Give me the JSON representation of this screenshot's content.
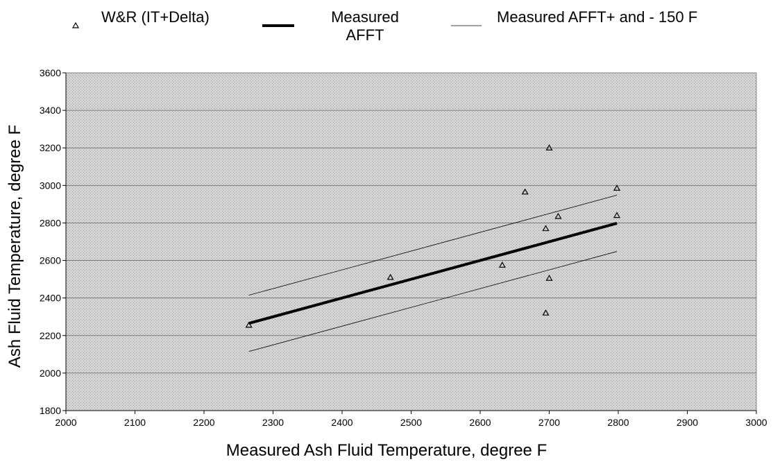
{
  "chart_data": {
    "type": "scatter",
    "title": "",
    "xlabel": "Measured Ash Fluid Temperature, degree F",
    "ylabel": "Ash Fluid Temperature, degree F",
    "xlim": [
      2000,
      3000
    ],
    "ylim": [
      1800,
      3600
    ],
    "xticks": [
      "2000",
      "2100",
      "2200",
      "2300",
      "2400",
      "2500",
      "2600",
      "2700",
      "2800",
      "2900",
      "3000"
    ],
    "yticks": [
      "1800",
      "2000",
      "2200",
      "2400",
      "2600",
      "2800",
      "3000",
      "3200",
      "3400",
      "3600"
    ],
    "grid": "horizontal",
    "legend_position": "top",
    "series": [
      {
        "name": "W&R (IT+Delta)",
        "kind": "scatter",
        "marker": "open-triangle",
        "x": [
          2265,
          2470,
          2632,
          2665,
          2695,
          2695,
          2700,
          2700,
          2713,
          2798,
          2798
        ],
        "y": [
          2255,
          2510,
          2575,
          2965,
          2770,
          2320,
          3200,
          2505,
          2835,
          2985,
          2840
        ]
      },
      {
        "name": "Measured AFFT",
        "kind": "line",
        "line_weight": "heavy",
        "x": [
          2265,
          2798
        ],
        "y": [
          2265,
          2798
        ]
      },
      {
        "name": "Measured AFFT+ and - 150 F",
        "kind": "line",
        "line_weight": "thin",
        "lines": [
          {
            "x": [
              2265,
              2798
            ],
            "y": [
              2415,
              2948
            ]
          },
          {
            "x": [
              2265,
              2798
            ],
            "y": [
              2115,
              2648
            ]
          }
        ]
      }
    ],
    "legend": [
      {
        "label": "W&R (IT+Delta)",
        "label_lines": [
          "W&R (IT+Delta)"
        ]
      },
      {
        "label": "Measured AFFT",
        "label_lines": [
          "Measured",
          "AFFT"
        ]
      },
      {
        "label": "Measured AFFT+ and - 150 F",
        "label_lines": [
          "Measured AFFT+ and - 150 F"
        ]
      }
    ],
    "colors": {
      "plot_background": "#d4d4d4",
      "grid": "#808080",
      "lines": "#000000"
    }
  }
}
